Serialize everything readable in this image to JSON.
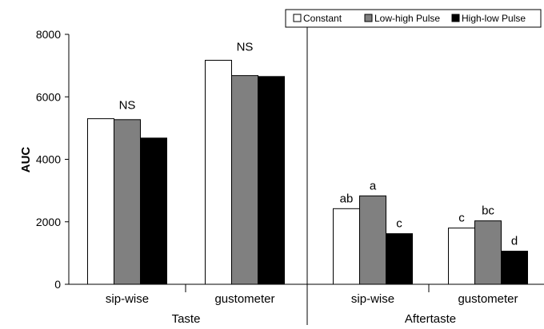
{
  "chart_data": {
    "type": "bar",
    "ylabel": "AUC",
    "ylim": [
      0,
      8000
    ],
    "yticks": [
      0,
      2000,
      4000,
      6000,
      8000
    ],
    "grid": false,
    "legend_position": "top-right",
    "categories": [
      "sip-wise",
      "gustometer",
      "sip-wise",
      "gustometer"
    ],
    "groups": [
      {
        "label": "Taste",
        "categories": [
          0,
          1
        ]
      },
      {
        "label": "Aftertaste",
        "categories": [
          2,
          3
        ]
      }
    ],
    "series": [
      {
        "name": "Constant",
        "color": "#ffffff",
        "values": [
          5300,
          7170,
          2420,
          1800
        ]
      },
      {
        "name": "Low-high Pulse",
        "color": "#808080",
        "values": [
          5270,
          6680,
          2830,
          2030
        ]
      },
      {
        "name": "High-low Pulse",
        "color": "#000000",
        "values": [
          4680,
          6650,
          1620,
          1060
        ]
      }
    ],
    "annotations": [
      {
        "text": "NS",
        "category": 0
      },
      {
        "text": "NS",
        "category": 1
      },
      {
        "text": "ab",
        "category": 2,
        "series": 0
      },
      {
        "text": "a",
        "category": 2,
        "series": 1
      },
      {
        "text": "c",
        "category": 2,
        "series": 2
      },
      {
        "text": "c",
        "category": 3,
        "series": 0
      },
      {
        "text": "bc",
        "category": 3,
        "series": 1
      },
      {
        "text": "d",
        "category": 3,
        "series": 2
      }
    ]
  }
}
